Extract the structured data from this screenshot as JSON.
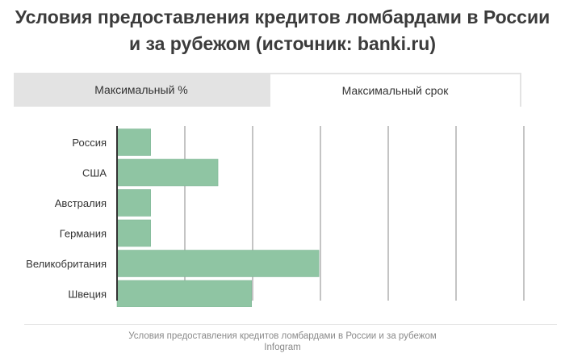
{
  "title_line1": "Условия предоставления кредитов ломбардами в России",
  "title_line2": "и за рубежом (источник: banki.ru)",
  "tabs": [
    {
      "label": "Максимальный %",
      "active": false
    },
    {
      "label": "Максимальный срок",
      "active": true
    }
  ],
  "colors": {
    "bar": "#8fc5a3",
    "bar_stroke": "#7ab392",
    "grid": "#8a8a8a",
    "tab_bg": "#e3e3e3"
  },
  "chart_data": {
    "type": "bar",
    "orientation": "horizontal",
    "categories": [
      "Россия",
      "США",
      "Австралия",
      "Германия",
      "Великобритания",
      "Швеция"
    ],
    "values": [
      1,
      3,
      1,
      1,
      6,
      4
    ],
    "xlim": [
      0,
      13
    ],
    "grid": true
  },
  "footer": {
    "line1": "Условия предоставления кредитов ломбардами в России и за рубежом",
    "line2": "Infogram"
  }
}
